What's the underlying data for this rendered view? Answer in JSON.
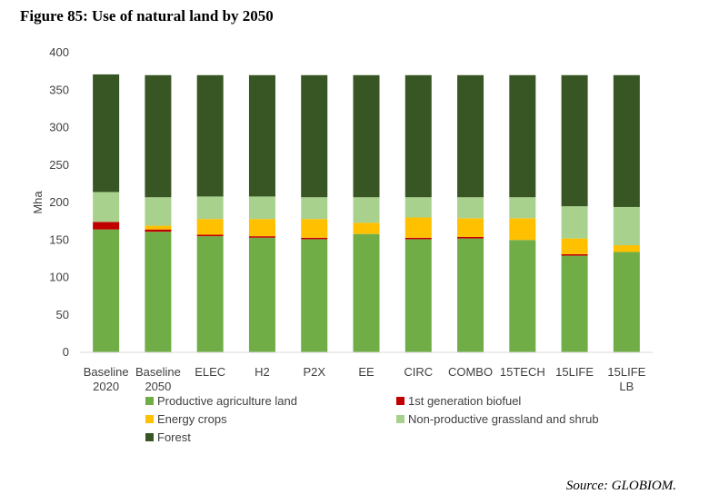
{
  "figure_title": "Figure 85: Use of natural land by 2050",
  "source": "Source: GLOBIOM.",
  "chart_data": {
    "type": "bar",
    "stacked": true,
    "ylabel": "Mha",
    "ylim": [
      0,
      400
    ],
    "yticks": [
      0,
      50,
      100,
      150,
      200,
      250,
      300,
      350,
      400
    ],
    "categories": [
      [
        "Baseline",
        "2020"
      ],
      [
        "Baseline",
        "2050"
      ],
      [
        "ELEC"
      ],
      [
        "H2"
      ],
      [
        "P2X"
      ],
      [
        "EE"
      ],
      [
        "CIRC"
      ],
      [
        "COMBO"
      ],
      [
        "15TECH"
      ],
      [
        "15LIFE"
      ],
      [
        "15LIFE",
        "LB"
      ]
    ],
    "series": [
      {
        "name": "Productive agriculture land",
        "color": "#70ad47",
        "values": [
          164,
          161,
          155,
          153,
          151,
          158,
          151,
          152,
          150,
          129,
          134
        ]
      },
      {
        "name": "1st generation biofuel",
        "color": "#c00000",
        "values": [
          10,
          3,
          2,
          2,
          2,
          0,
          2,
          2,
          0,
          2,
          0
        ]
      },
      {
        "name": "Energy crops",
        "color": "#ffc000",
        "values": [
          0,
          5,
          21,
          23,
          25,
          15,
          27,
          25,
          29,
          21,
          9
        ]
      },
      {
        "name": "Non-productive grassland and shrub",
        "color": "#a9d18e",
        "values": [
          40,
          38,
          30,
          30,
          29,
          34,
          27,
          28,
          28,
          43,
          51
        ]
      },
      {
        "name": "Forest",
        "color": "#375623",
        "values": [
          157,
          163,
          162,
          162,
          163,
          163,
          163,
          163,
          163,
          175,
          176
        ]
      }
    ],
    "legend": {
      "placement": "bottom",
      "columns": 2
    }
  }
}
